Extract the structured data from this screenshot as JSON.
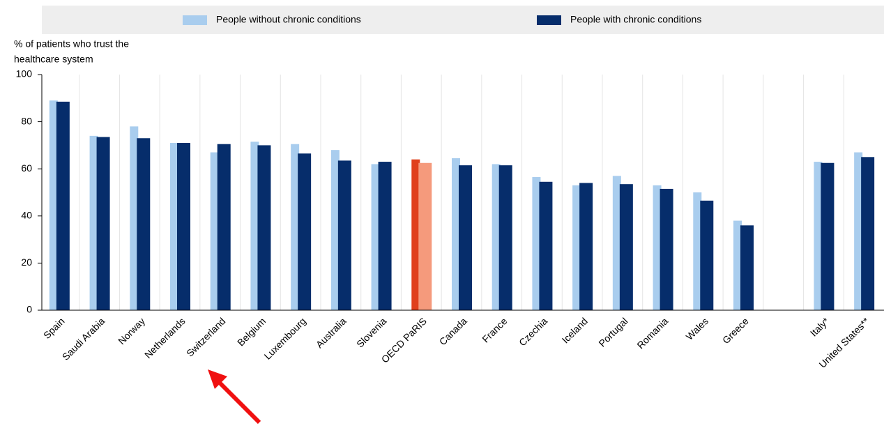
{
  "chart_data": {
    "type": "bar",
    "ylabel": [
      "% of patients who trust the",
      "healthcare system"
    ],
    "categories": [
      "Spain",
      "Saudi Arabia",
      "Norway",
      "Netherlands",
      "Switzerland",
      "Belgium",
      "Luxembourg",
      "Australia",
      "Slovenia",
      "OECD PaRIS",
      "Canada",
      "France",
      "Czechia",
      "Iceland",
      "Portugal",
      "Romania",
      "Wales",
      "Greece",
      null,
      "Italy*",
      "United States**"
    ],
    "series": [
      {
        "name": "People without chronic conditions",
        "color": "#a9cdee",
        "colors": [
          "#a9cdee",
          "#a9cdee",
          "#a9cdee",
          "#a9cdee",
          "#a9cdee",
          "#a9cdee",
          "#a9cdee",
          "#a9cdee",
          "#a9cdee",
          "#e0401c",
          "#a9cdee",
          "#a9cdee",
          "#a9cdee",
          "#a9cdee",
          "#a9cdee",
          "#a9cdee",
          "#a9cdee",
          "#a9cdee",
          "#a9cdee",
          "#a9cdee",
          "#a9cdee"
        ],
        "values": [
          89,
          74,
          78,
          71,
          67,
          71.5,
          70.5,
          68,
          62,
          64,
          64.5,
          62,
          56.5,
          53,
          57,
          53,
          50,
          38,
          null,
          63,
          67
        ]
      },
      {
        "name": "People with chronic conditions",
        "color": "#062d6b",
        "colors": [
          "#062d6b",
          "#062d6b",
          "#062d6b",
          "#062d6b",
          "#062d6b",
          "#062d6b",
          "#062d6b",
          "#062d6b",
          "#062d6b",
          "#f59a7c",
          "#062d6b",
          "#062d6b",
          "#062d6b",
          "#062d6b",
          "#062d6b",
          "#062d6b",
          "#062d6b",
          "#062d6b",
          "#062d6b",
          "#062d6b",
          "#062d6b"
        ],
        "values": [
          88.5,
          73.5,
          73,
          71,
          70.5,
          70,
          66.5,
          63.5,
          63,
          62.5,
          61.5,
          61.5,
          54.5,
          54,
          53.5,
          51.5,
          46.5,
          36,
          null,
          62.5,
          65
        ]
      }
    ],
    "ylim": [
      0,
      100
    ],
    "yticks": [
      0,
      20,
      40,
      60,
      80,
      100
    ],
    "legend": "top"
  }
}
